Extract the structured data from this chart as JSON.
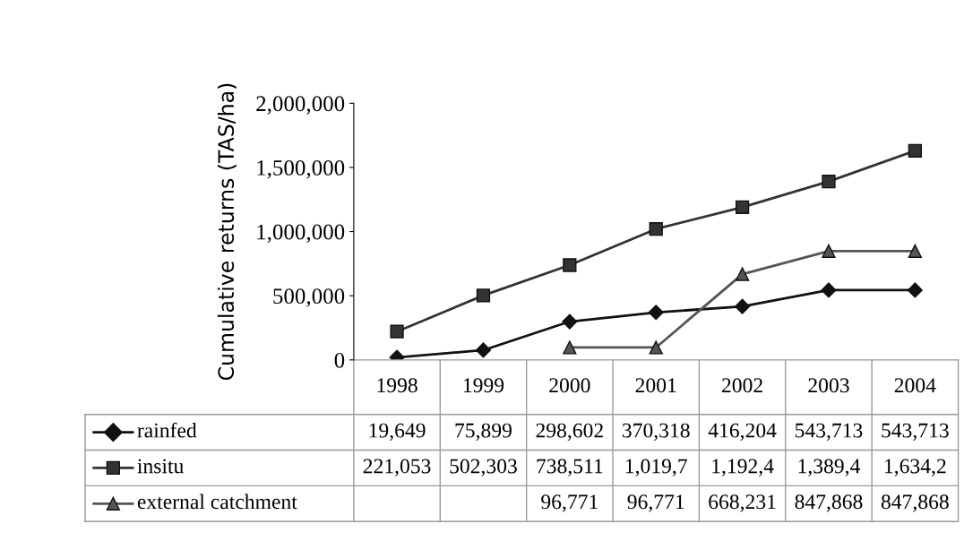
{
  "chart_data": {
    "type": "line",
    "ylabel": "Cumulative returns (TAS/ha)",
    "categories": [
      "1998",
      "1999",
      "2000",
      "2001",
      "2002",
      "2003",
      "2004"
    ],
    "series": [
      {
        "name": "rainfed",
        "color": "#111111",
        "marker": "diamond",
        "values": [
          19649,
          75899,
          298602,
          370318,
          416204,
          543713,
          543713
        ],
        "value_labels": [
          "19,649",
          "75,899",
          "298,602",
          "370,318",
          "416,204",
          "543,713",
          "543,713"
        ]
      },
      {
        "name": "insitu",
        "color": "#333333",
        "marker": "square",
        "values": [
          221053,
          502303,
          738511,
          1020000,
          1190000,
          1390000,
          1630000
        ],
        "value_labels": [
          "221,053",
          "502,303",
          "738,511",
          "1,019,7",
          "1,192,4",
          "1,389,4",
          "1,634,2"
        ]
      },
      {
        "name": "external catchment",
        "color": "#555555",
        "marker": "triangle",
        "values": [
          null,
          null,
          96771,
          96771,
          668231,
          847868,
          847868
        ],
        "value_labels": [
          null,
          null,
          "96,771",
          "96,771",
          "668,231",
          "847,868",
          "847,868"
        ]
      }
    ],
    "ylim": [
      0,
      2000000
    ],
    "yticks": [
      {
        "value": 0,
        "label": "0"
      },
      {
        "value": 500000,
        "label": "500,000"
      },
      {
        "value": 1000000,
        "label": "1,000,000"
      },
      {
        "value": 1500000,
        "label": "1,500,000"
      },
      {
        "value": 2000000,
        "label": "2,000,000"
      }
    ],
    "grid": false,
    "legend": "bottom",
    "line_style": "solid"
  }
}
